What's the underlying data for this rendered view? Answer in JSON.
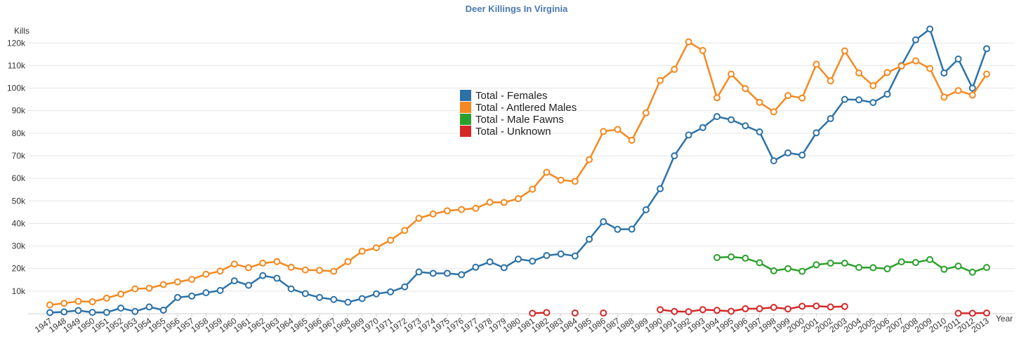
{
  "chart_data": {
    "type": "line",
    "title": "Deer Killings In Virginia",
    "ylabel": "Kills",
    "xlabel": "Year",
    "ylim": [
      0,
      126000
    ],
    "yticks": [
      10000,
      20000,
      30000,
      40000,
      50000,
      60000,
      70000,
      80000,
      90000,
      100000,
      110000,
      120000
    ],
    "ytick_labels": [
      "10k",
      "20k",
      "30k",
      "40k",
      "50k",
      "60k",
      "70k",
      "80k",
      "90k",
      "100k",
      "110k",
      "120k"
    ],
    "grid": true,
    "legend_position": "center",
    "x": [
      1947,
      1948,
      1949,
      1950,
      1951,
      1952,
      1953,
      1954,
      1955,
      1956,
      1957,
      1958,
      1959,
      1960,
      1961,
      1962,
      1963,
      1964,
      1965,
      1966,
      1967,
      1968,
      1969,
      1970,
      1971,
      1972,
      1973,
      1974,
      1975,
      1976,
      1977,
      1978,
      1979,
      1980,
      1981,
      1982,
      1983,
      1984,
      1985,
      1986,
      1987,
      1988,
      1989,
      1990,
      1991,
      1992,
      1993,
      1994,
      1995,
      1996,
      1997,
      1998,
      1999,
      2000,
      2001,
      2002,
      2003,
      2004,
      2005,
      2006,
      2007,
      2008,
      2009,
      2010,
      2011,
      2012,
      2013
    ],
    "series": [
      {
        "name": "Total - Females",
        "color": "#2c72a8",
        "values": [
          500,
          800,
          1400,
          600,
          600,
          2500,
          1000,
          3000,
          1600,
          7200,
          7800,
          9300,
          10300,
          14600,
          12600,
          16900,
          15700,
          11000,
          8900,
          7200,
          6300,
          5100,
          6700,
          8800,
          9700,
          11900,
          18500,
          17900,
          17900,
          17300,
          20600,
          23000,
          20400,
          24200,
          23300,
          25800,
          26500,
          25600,
          33000,
          40800,
          37400,
          37500,
          46100,
          55400,
          70000,
          79200,
          82500,
          87400,
          86000,
          83300,
          80600,
          67800,
          71300,
          70300,
          80200,
          86500,
          95000,
          94800,
          93600,
          97300,
          110000,
          121400,
          126200,
          106700,
          112900,
          100000,
          117500
        ]
      },
      {
        "name": "Total - Antlered Males",
        "color": "#f5891f",
        "values": [
          3900,
          4600,
          5500,
          5300,
          6900,
          8700,
          11000,
          11300,
          12900,
          14100,
          15200,
          17500,
          18900,
          22000,
          20400,
          22400,
          23100,
          20600,
          19400,
          19200,
          18800,
          23100,
          27700,
          29200,
          32600,
          36900,
          42300,
          44200,
          45600,
          46200,
          46700,
          49400,
          49300,
          51000,
          55200,
          62700,
          59200,
          58700,
          68300,
          80800,
          81700,
          76900,
          89000,
          103400,
          108300,
          120500,
          116700,
          95700,
          106200,
          99800,
          93700,
          89500,
          96700,
          95600,
          110600,
          103200,
          116500,
          106700,
          101100,
          106900,
          109800,
          112100,
          108700,
          96000,
          98900,
          96900,
          106200
        ]
      },
      {
        "name": "Total - Male Fawns",
        "color": "#2ca02c",
        "values": [
          null,
          null,
          null,
          null,
          null,
          null,
          null,
          null,
          null,
          null,
          null,
          null,
          null,
          null,
          null,
          null,
          null,
          null,
          null,
          null,
          null,
          null,
          null,
          null,
          null,
          null,
          null,
          null,
          null,
          null,
          null,
          null,
          null,
          null,
          null,
          null,
          null,
          null,
          null,
          null,
          null,
          null,
          null,
          null,
          null,
          null,
          null,
          24900,
          25200,
          24600,
          22600,
          19000,
          20000,
          18800,
          21700,
          22400,
          22400,
          20500,
          20400,
          19900,
          23000,
          22700,
          24000,
          19700,
          21100,
          18400,
          20500
        ]
      },
      {
        "name": "Total - Unknown",
        "color": "#d62728",
        "values": [
          null,
          null,
          null,
          null,
          null,
          null,
          null,
          null,
          null,
          null,
          null,
          null,
          null,
          null,
          null,
          null,
          null,
          null,
          null,
          null,
          null,
          null,
          null,
          null,
          null,
          null,
          null,
          null,
          null,
          null,
          null,
          null,
          null,
          null,
          200,
          500,
          null,
          300,
          null,
          300,
          null,
          null,
          null,
          1800,
          1000,
          900,
          1800,
          1500,
          1100,
          2200,
          2200,
          2800,
          2100,
          3300,
          3400,
          3000,
          3200,
          null,
          null,
          null,
          null,
          null,
          null,
          null,
          200,
          200,
          300
        ]
      }
    ]
  }
}
